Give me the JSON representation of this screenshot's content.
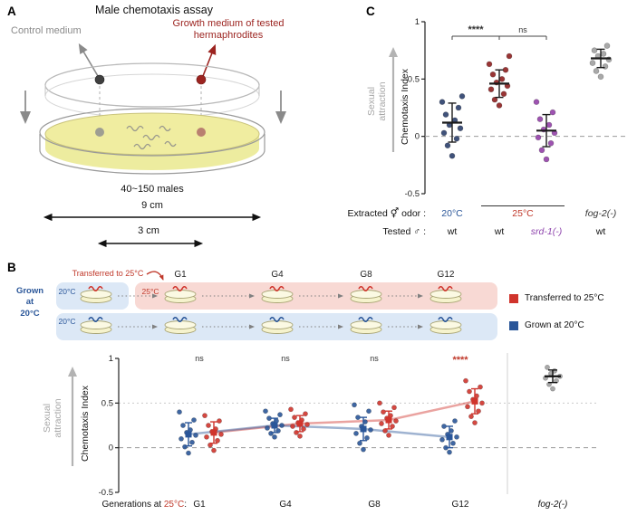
{
  "panelA": {
    "label": "A",
    "title": "Male chemotaxis assay",
    "control_label": "Control medium",
    "growth_label": "Growth medium of tested\nhermaphrodites",
    "males_label": "40~150 males",
    "dim_outer": "9 cm",
    "dim_inner": "3 cm",
    "colors": {
      "control": "#8a8a8a",
      "growth": "#9c2420",
      "agar": "#f0eda0"
    }
  },
  "panelB": {
    "label": "B",
    "schematic": {
      "transferred_label": "Transferred to 25°C",
      "temp_20": "20°C",
      "temp_25": "25°C",
      "grown_label": "Grown\nat\n20°C",
      "generation_headers": [
        "G1",
        "G4",
        "G8",
        "G12"
      ],
      "legend": [
        {
          "label": "Transferred to 25°C",
          "color": "#d0342c"
        },
        {
          "label": "Grown at 20°C",
          "color": "#2a5699"
        }
      ]
    },
    "xaxis": {
      "prefix": "Generations at ",
      "temp": "25°C",
      "suffix": ":"
    }
  },
  "panelC": {
    "label": "C",
    "row1_label": "Extracted ⚥ odor :",
    "row2_label": "Tested ♂ :",
    "odor_values": [
      {
        "text": "20°C",
        "color": "#2a5699"
      },
      {
        "text": "25°C",
        "color": "#c0392b"
      },
      {
        "text": "fog-2(-)",
        "color": "#333333"
      }
    ],
    "tested_values": [
      "wt",
      "wt",
      "srd-1(-)",
      "wt"
    ],
    "srd_color": "#8e44ad"
  },
  "axes": {
    "ylabel": "Chemotaxis Index",
    "side_label": "Sexual\nattraction"
  },
  "chart_data": [
    {
      "id": "panelC-plot",
      "type": "scatter",
      "title": "Sexual attraction chemotaxis index by odor source and male genotype",
      "ylabel": "Chemotaxis Index",
      "ylim": [
        -0.5,
        1
      ],
      "yticks": [
        1,
        0.5,
        0,
        -0.5
      ],
      "zero_line": true,
      "groups": [
        {
          "name": "wt males / 20°C odor",
          "color": "#2b3f6b",
          "mean": 0.12,
          "err": 0.17,
          "points": [
            -0.17,
            -0.08,
            -0.02,
            0.03,
            0.07,
            0.1,
            0.14,
            0.19,
            0.25,
            0.3,
            0.35
          ]
        },
        {
          "name": "wt males / 25°C odor",
          "color": "#8e1f1f",
          "mean": 0.46,
          "err": 0.12,
          "points": [
            0.27,
            0.32,
            0.37,
            0.41,
            0.44,
            0.47,
            0.5,
            0.54,
            0.58,
            0.63,
            0.7
          ]
        },
        {
          "name": "srd-1(-) males / 25°C odor",
          "color": "#9440a8",
          "mean": 0.05,
          "err": 0.14,
          "points": [
            -0.2,
            -0.12,
            -0.06,
            -0.01,
            0.03,
            0.06,
            0.1,
            0.15,
            0.21,
            0.3
          ]
        },
        {
          "name": "fog-2(-)",
          "color": "#a0a0a0",
          "mean": 0.68,
          "err": 0.08,
          "points": [
            0.52,
            0.57,
            0.61,
            0.64,
            0.67,
            0.7,
            0.72,
            0.75,
            0.79
          ]
        }
      ],
      "significance": [
        {
          "from": 0,
          "to": 1,
          "label": "****"
        },
        {
          "from": 1,
          "to": 2,
          "label": "ns"
        }
      ]
    },
    {
      "id": "panelB-plot",
      "type": "scatter",
      "title": "Chemotaxis index across generations at 25°C vs 20°C",
      "ylabel": "Chemotaxis Index",
      "ylim": [
        -0.5,
        1
      ],
      "yticks": [
        1,
        0.5,
        0,
        -0.5
      ],
      "categories": [
        "G1",
        "G4",
        "G8",
        "G12"
      ],
      "series": [
        {
          "name": "Transferred to 25°C",
          "color": "#d0342c",
          "means": [
            0.17,
            0.27,
            0.31,
            0.52
          ],
          "errs": [
            0.12,
            0.09,
            0.1,
            0.14
          ],
          "points": [
            [
              -0.03,
              0.03,
              0.08,
              0.12,
              0.15,
              0.18,
              0.21,
              0.25,
              0.3,
              0.36
            ],
            [
              0.13,
              0.17,
              0.21,
              0.24,
              0.26,
              0.28,
              0.31,
              0.34,
              0.38,
              0.43
            ],
            [
              0.14,
              0.19,
              0.24,
              0.27,
              0.3,
              0.33,
              0.36,
              0.4,
              0.45,
              0.5
            ],
            [
              0.28,
              0.35,
              0.41,
              0.46,
              0.5,
              0.54,
              0.58,
              0.63,
              0.68,
              0.75
            ]
          ]
        },
        {
          "name": "Grown at 20°C",
          "color": "#2a5699",
          "means": [
            0.15,
            0.25,
            0.21,
            0.12
          ],
          "errs": [
            0.13,
            0.08,
            0.13,
            0.12
          ],
          "points": [
            [
              -0.06,
              0.01,
              0.06,
              0.1,
              0.14,
              0.17,
              0.2,
              0.25,
              0.31,
              0.4
            ],
            [
              0.12,
              0.16,
              0.19,
              0.22,
              0.25,
              0.27,
              0.3,
              0.33,
              0.37,
              0.41
            ],
            [
              -0.02,
              0.05,
              0.11,
              0.16,
              0.2,
              0.24,
              0.29,
              0.34,
              0.41,
              0.48
            ],
            [
              -0.05,
              0.0,
              0.05,
              0.09,
              0.12,
              0.15,
              0.19,
              0.24,
              0.3
            ]
          ]
        }
      ],
      "extra_group": {
        "name": "fog-2(-)",
        "color": "#a0a0a0",
        "mean": 0.8,
        "err": 0.07,
        "points": [
          0.66,
          0.71,
          0.75,
          0.78,
          0.8,
          0.83,
          0.86,
          0.9
        ]
      },
      "significance_labels": [
        {
          "category": "G1",
          "label": "ns"
        },
        {
          "category": "G4",
          "label": "ns"
        },
        {
          "category": "G8",
          "label": "ns"
        },
        {
          "category": "G12",
          "label": "****",
          "color": "#c0392b"
        }
      ],
      "ref_lines": [
        {
          "y": 0,
          "style": "dashed"
        },
        {
          "y": 0.5,
          "style": "dotted"
        }
      ]
    }
  ]
}
